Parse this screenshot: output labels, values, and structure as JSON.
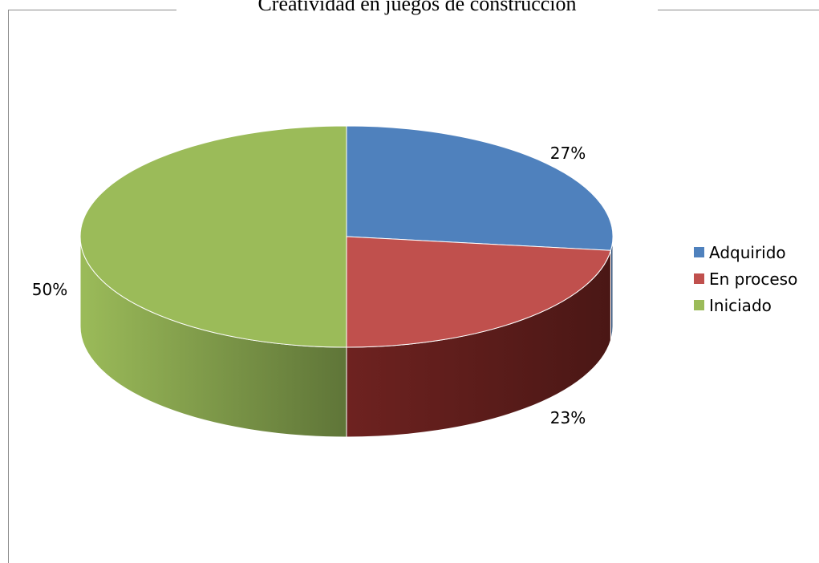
{
  "chart_data": {
    "type": "pie",
    "title": "Creatividad en juegos de construcción",
    "three_d": true,
    "categories": [
      "Adquirido",
      "En proceso",
      "Iniciado"
    ],
    "values": [
      27,
      23,
      50
    ],
    "labels": [
      "27%",
      "23%",
      "50%"
    ],
    "colors": [
      "#4f81bd",
      "#c0504d",
      "#9bbb59"
    ],
    "legend_position": "right"
  }
}
